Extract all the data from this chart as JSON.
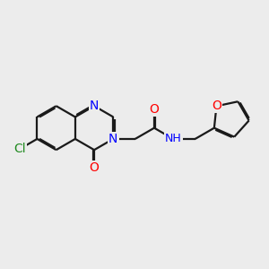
{
  "bg_color": "#ececec",
  "bond_color": "#1a1a1a",
  "bond_width": 1.6,
  "atom_colors": {
    "N": "#0000ff",
    "O": "#ff0000",
    "Cl": "#228B22",
    "C": "#1a1a1a"
  },
  "font_size": 10,
  "dbo": 0.055
}
